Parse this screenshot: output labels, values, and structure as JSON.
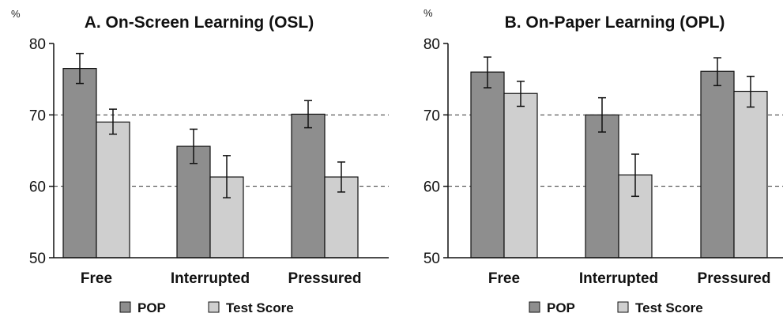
{
  "chart_data": [
    {
      "type": "bar",
      "title": "A. On-Screen Learning (OSL)",
      "unit_label": "%",
      "categories": [
        "Free",
        "Interrupted",
        "Pressured"
      ],
      "ylim": [
        50,
        80
      ],
      "yticks": [
        50,
        60,
        70,
        80
      ],
      "gridlines": [
        60,
        70
      ],
      "grid": "dashed horizontal at 60 and 70",
      "series": [
        {
          "name": "POP",
          "color": "#8e8e8e",
          "values": [
            76.5,
            65.6,
            70.1
          ],
          "err_low": [
            74.4,
            63.2,
            68.2
          ],
          "err_high": [
            78.6,
            68.0,
            72.0
          ]
        },
        {
          "name": "Test Score",
          "color": "#cfcfcf",
          "values": [
            69.0,
            61.3,
            61.3
          ],
          "err_low": [
            67.3,
            58.4,
            59.2
          ],
          "err_high": [
            70.8,
            64.3,
            63.4
          ]
        }
      ],
      "legend": {
        "placement": "bottom-center",
        "items": [
          "POP",
          "Test Score"
        ]
      }
    },
    {
      "type": "bar",
      "title": "B. On-Paper Learning (OPL)",
      "unit_label": "%",
      "categories": [
        "Free",
        "Interrupted",
        "Pressured"
      ],
      "ylim": [
        50,
        80
      ],
      "yticks": [
        50,
        60,
        70,
        80
      ],
      "gridlines": [
        60,
        70
      ],
      "grid": "dashed horizontal at 60 and 70",
      "series": [
        {
          "name": "POP",
          "color": "#8e8e8e",
          "values": [
            76.0,
            70.0,
            76.1
          ],
          "err_low": [
            73.8,
            67.6,
            74.1
          ],
          "err_high": [
            78.1,
            72.4,
            78.0
          ]
        },
        {
          "name": "Test Score",
          "color": "#cfcfcf",
          "values": [
            73.0,
            61.6,
            73.3
          ],
          "err_low": [
            71.2,
            58.6,
            71.1
          ],
          "err_high": [
            74.7,
            64.5,
            75.4
          ]
        }
      ],
      "legend": {
        "placement": "bottom-center",
        "items": [
          "POP",
          "Test Score"
        ]
      }
    }
  ]
}
